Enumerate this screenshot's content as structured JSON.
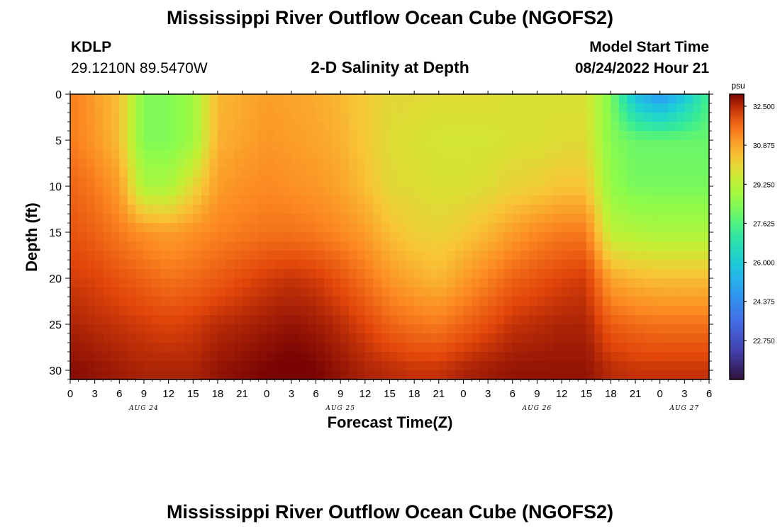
{
  "title": "Mississippi River Outflow Ocean Cube (NGOFS2)",
  "title_repeat": "Mississippi River Outflow Ocean Cube (NGOFS2)",
  "station": {
    "id": "KDLP",
    "coords": "29.1210N  89.5470W"
  },
  "subtitle": "2-D Salinity at Depth",
  "model_start": {
    "label": "Model Start Time",
    "value": "08/24/2022 Hour 21"
  },
  "chart_data": {
    "type": "heatmap",
    "xlabel": "Forecast Time(Z)",
    "ylabel": "Depth (ft)",
    "x_units": "hours since AUG 24 00Z",
    "xlim": [
      0,
      78
    ],
    "ylim": [
      0,
      31
    ],
    "y_inverted": true,
    "x_tick_labels": [
      "0",
      "3",
      "6",
      "9",
      "12",
      "15",
      "18",
      "21",
      "0",
      "3",
      "6",
      "9",
      "12",
      "15",
      "18",
      "21",
      "0",
      "3",
      "6",
      "9",
      "12",
      "15",
      "18",
      "21",
      "0",
      "3",
      "6"
    ],
    "y_tick_labels": [
      "0",
      "5",
      "10",
      "15",
      "20",
      "25",
      "30"
    ],
    "day_labels": [
      "AUG 24",
      "AUG 25",
      "AUG 26",
      "AUG 27"
    ],
    "colorbar": {
      "unit": "psu",
      "range": [
        21.125,
        33.0
      ],
      "tick_labels": [
        "32.500",
        "30.875",
        "29.250",
        "27.625",
        "26.000",
        "24.375",
        "22.750"
      ]
    },
    "salinity_grid": {
      "depths_ft": [
        0,
        5,
        10,
        15,
        20,
        25,
        30
      ],
      "hours": [
        0,
        3,
        6,
        9,
        12,
        15,
        18,
        21,
        24,
        27,
        30,
        33,
        36,
        39,
        42,
        45,
        48,
        51,
        54,
        57,
        60,
        63,
        66,
        69,
        72,
        75,
        78
      ],
      "values": [
        [
          31.5,
          31.0,
          30.5,
          28.3,
          28.3,
          28.8,
          30.6,
          30.8,
          31.0,
          30.9,
          30.8,
          30.6,
          30.3,
          30.0,
          30.0,
          29.9,
          29.9,
          29.9,
          29.8,
          29.8,
          29.8,
          29.8,
          28.3,
          25.6,
          24.5,
          25.8,
          27.5
        ],
        [
          31.5,
          31.1,
          30.5,
          28.3,
          28.3,
          28.8,
          30.7,
          30.9,
          31.1,
          31.0,
          30.9,
          30.7,
          30.3,
          29.9,
          29.8,
          29.7,
          29.7,
          29.7,
          29.8,
          29.8,
          29.9,
          29.9,
          28.4,
          28.0,
          28.0,
          28.0,
          28.0
        ],
        [
          31.8,
          31.5,
          31.0,
          29.0,
          29.0,
          30.0,
          31.0,
          31.2,
          31.3,
          31.2,
          31.1,
          30.9,
          30.5,
          30.0,
          29.9,
          29.8,
          29.8,
          29.9,
          30.1,
          30.2,
          30.4,
          30.4,
          28.6,
          28.2,
          28.2,
          28.2,
          28.2
        ],
        [
          32.0,
          31.8,
          31.5,
          31.2,
          31.0,
          31.2,
          31.4,
          31.5,
          31.6,
          31.6,
          31.5,
          31.3,
          31.0,
          30.5,
          30.2,
          30.1,
          30.3,
          30.6,
          31.0,
          31.3,
          31.5,
          31.5,
          29.3,
          29.1,
          29.0,
          29.0,
          29.0
        ],
        [
          32.3,
          32.2,
          32.0,
          31.8,
          31.6,
          31.7,
          31.9,
          32.1,
          32.3,
          32.4,
          32.3,
          32.0,
          31.6,
          31.1,
          30.8,
          30.6,
          31.0,
          31.4,
          31.8,
          32.0,
          32.2,
          32.3,
          30.9,
          30.6,
          30.5,
          30.5,
          30.5
        ],
        [
          32.6,
          32.5,
          32.4,
          32.3,
          32.2,
          32.3,
          32.5,
          32.6,
          32.7,
          32.8,
          32.7,
          32.5,
          32.2,
          31.8,
          31.6,
          31.5,
          31.8,
          32.1,
          32.4,
          32.5,
          32.6,
          32.6,
          31.9,
          31.7,
          31.6,
          31.6,
          31.6
        ],
        [
          32.9,
          32.8,
          32.7,
          32.6,
          32.6,
          32.6,
          32.8,
          32.9,
          33.0,
          33.1,
          33.0,
          32.8,
          32.6,
          32.5,
          32.4,
          32.4,
          32.6,
          32.7,
          32.8,
          32.8,
          32.8,
          32.8,
          32.5,
          32.4,
          32.4,
          32.4,
          32.4
        ]
      ]
    }
  }
}
